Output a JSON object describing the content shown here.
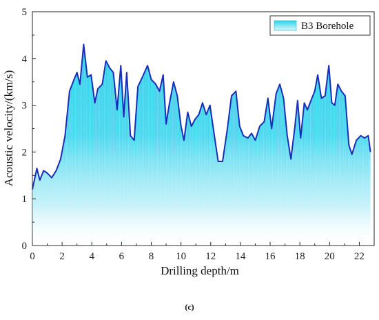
{
  "chart_data": {
    "type": "area",
    "xlabel": "Drilling depth/m",
    "ylabel": "Acoustic velocity/(km/s)",
    "xlim": [
      0,
      23
    ],
    "ylim": [
      0,
      5
    ],
    "xticks": [
      "0",
      "2",
      "4",
      "6",
      "8",
      "10",
      "12",
      "14",
      "16",
      "18",
      "20",
      "22"
    ],
    "yticks": [
      "0",
      "1",
      "2",
      "3",
      "4",
      "5"
    ],
    "legend_position": "top-right",
    "grid": false,
    "panel_label": "(c)",
    "series": [
      {
        "name": "B3 Borehole",
        "line_color": "#1a2db8",
        "fill_color": "#2fd3ec",
        "x": [
          0.0,
          0.3,
          0.5,
          0.75,
          1.0,
          1.3,
          1.6,
          1.9,
          2.2,
          2.5,
          2.8,
          3.0,
          3.2,
          3.45,
          3.7,
          3.95,
          4.2,
          4.4,
          4.7,
          4.95,
          5.2,
          5.45,
          5.7,
          5.95,
          6.15,
          6.35,
          6.6,
          6.85,
          7.1,
          7.4,
          7.75,
          8.0,
          8.3,
          8.55,
          8.8,
          9.0,
          9.2,
          9.5,
          9.75,
          10.0,
          10.2,
          10.45,
          10.7,
          10.95,
          11.2,
          11.45,
          11.7,
          11.95,
          12.2,
          12.5,
          12.8,
          13.1,
          13.4,
          13.7,
          13.95,
          14.2,
          14.5,
          14.75,
          15.0,
          15.3,
          15.6,
          15.85,
          16.1,
          16.4,
          16.65,
          16.9,
          17.15,
          17.4,
          17.65,
          17.85,
          18.05,
          18.3,
          18.5,
          18.75,
          19.0,
          19.2,
          19.45,
          19.7,
          19.95,
          20.15,
          20.35,
          20.55,
          20.8,
          21.05,
          21.3,
          21.5,
          21.8,
          22.1,
          22.35,
          22.6,
          22.75
        ],
        "values": [
          1.2,
          1.65,
          1.4,
          1.6,
          1.55,
          1.45,
          1.6,
          1.85,
          2.35,
          3.3,
          3.55,
          3.7,
          3.45,
          4.3,
          3.6,
          3.65,
          3.05,
          3.35,
          3.45,
          3.95,
          3.8,
          3.7,
          2.9,
          3.85,
          2.75,
          3.7,
          2.35,
          2.25,
          3.4,
          3.6,
          3.85,
          3.55,
          3.45,
          3.3,
          3.65,
          2.6,
          3.0,
          3.5,
          3.2,
          2.55,
          2.25,
          2.85,
          2.55,
          2.7,
          2.8,
          3.05,
          2.8,
          3.0,
          2.45,
          1.8,
          1.8,
          2.45,
          3.2,
          3.3,
          2.55,
          2.35,
          2.3,
          2.4,
          2.25,
          2.55,
          2.65,
          3.15,
          2.5,
          3.25,
          3.45,
          3.15,
          2.35,
          1.85,
          2.5,
          3.1,
          2.3,
          3.05,
          2.9,
          3.1,
          3.3,
          3.65,
          3.15,
          3.2,
          3.85,
          3.05,
          3.0,
          3.45,
          3.3,
          3.2,
          2.15,
          1.95,
          2.25,
          2.35,
          2.3,
          2.35,
          2.0
        ]
      }
    ]
  }
}
